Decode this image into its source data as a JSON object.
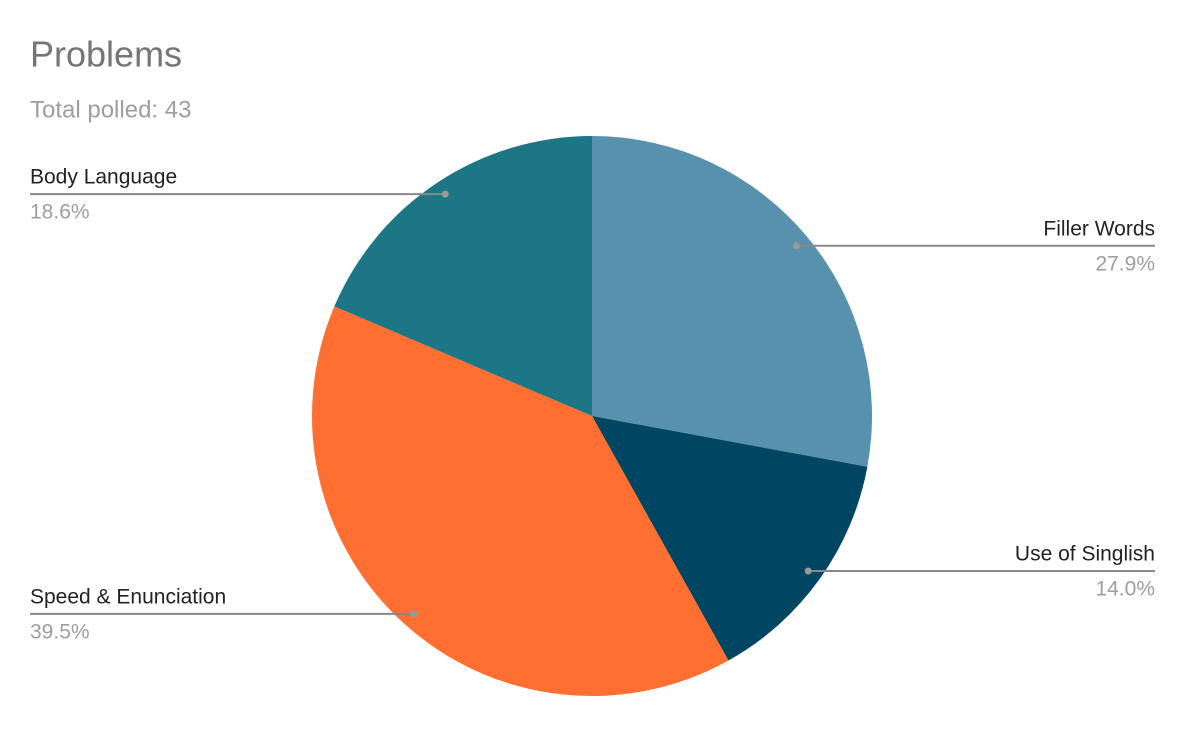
{
  "chart_data": {
    "type": "pie",
    "title": "Problems",
    "subtitle": "Total polled: 43",
    "categories": [
      "Filler Words",
      "Use of Singlish",
      "Speed & Enunciation",
      "Body Language"
    ],
    "values": [
      27.9,
      14.0,
      39.5,
      18.6
    ],
    "value_labels": [
      "27.9%",
      "14.0%",
      "39.5%",
      "18.6%"
    ],
    "colors": [
      "#5891ad",
      "#004561",
      "#ff6f31",
      "#1c7685"
    ]
  }
}
